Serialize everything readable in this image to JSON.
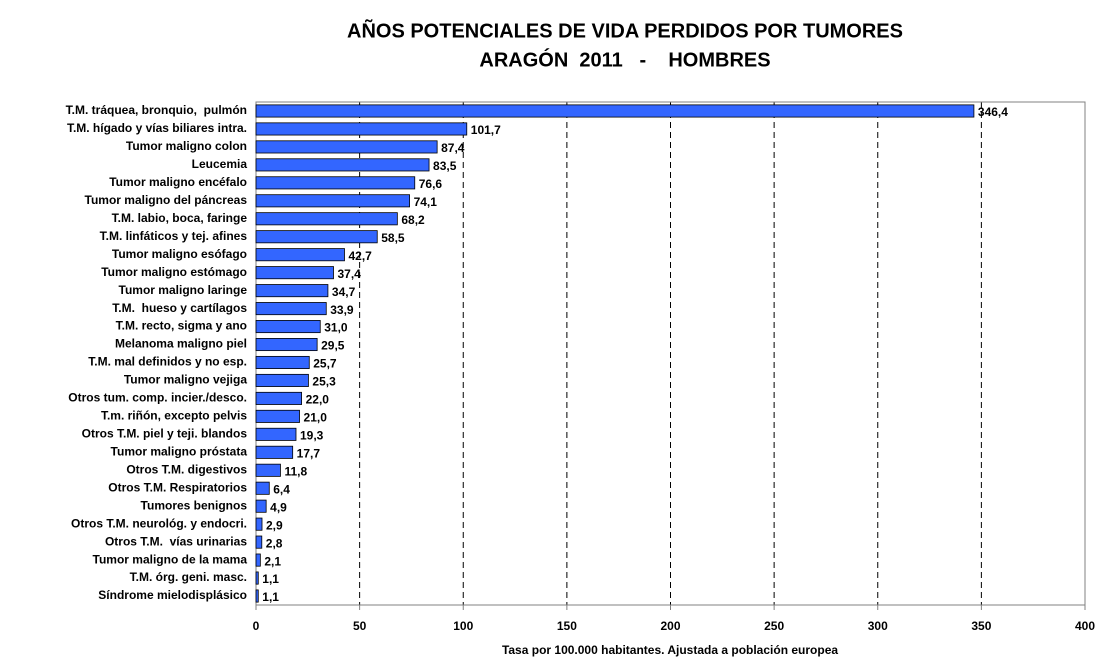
{
  "chart_data": {
    "type": "barh",
    "title": [
      "AÑOS POTENCIALES DE VIDA PERDIDOS POR TUMORES",
      "ARAGÓN  2011   -    HOMBRES"
    ],
    "xlabel": "Tasa por 100.000 habitantes. Ajustada a población europea",
    "categories": [
      "T.M. tráquea, bronquio,  pulmón",
      "T.M. hígado y vías biliares intra.",
      "Tumor maligno colon",
      "Leucemia",
      "Tumor maligno encéfalo",
      "Tumor maligno del páncreas",
      "T.M. labio, boca, faringe",
      "T.M. linfáticos y tej. afines",
      "Tumor maligno esófago",
      "Tumor maligno estómago",
      "Tumor maligno laringe",
      "T.M.  hueso y cartílagos",
      "T.M. recto, sigma y ano",
      "Melanoma maligno piel",
      "T.M. mal definidos y no esp.",
      "Tumor maligno vejiga",
      "Otros tum. comp. incier./desco.",
      "T.m. riñón, excepto pelvis",
      "Otros T.M. piel y teji. blandos",
      "Tumor maligno próstata",
      "Otros T.M. digestivos",
      "Otros T.M. Respiratorios",
      "Tumores benignos",
      "Otros T.M. neurológ. y endocri.",
      "Otros T.M.  vías urinarias",
      "Tumor maligno de la mama",
      "T.M. órg. geni. masc.",
      "Síndrome mielodisplásico"
    ],
    "values": [
      346.4,
      101.7,
      87.4,
      83.5,
      76.6,
      74.1,
      68.2,
      58.5,
      42.7,
      37.4,
      34.7,
      33.9,
      31.0,
      29.5,
      25.7,
      25.3,
      22.0,
      21.0,
      19.3,
      17.7,
      11.8,
      6.4,
      4.9,
      2.9,
      2.8,
      2.1,
      1.1,
      1.1
    ],
    "value_labels": [
      "346,4",
      "101,7",
      "87,4",
      "83,5",
      "76,6",
      "74,1",
      "68,2",
      "58,5",
      "42,7",
      "37,4",
      "34,7",
      "33,9",
      "31,0",
      "29,5",
      "25,7",
      "25,3",
      "22,0",
      "21,0",
      "19,3",
      "17,7",
      "11,8",
      "6,4",
      "4,9",
      "2,9",
      "2,8",
      "2,1",
      "1,1",
      "1,1"
    ],
    "color": "#3366ff",
    "xlim": [
      0,
      400
    ],
    "xticks": [
      0,
      50,
      100,
      150,
      200,
      250,
      300,
      350,
      400
    ],
    "grid": true
  }
}
